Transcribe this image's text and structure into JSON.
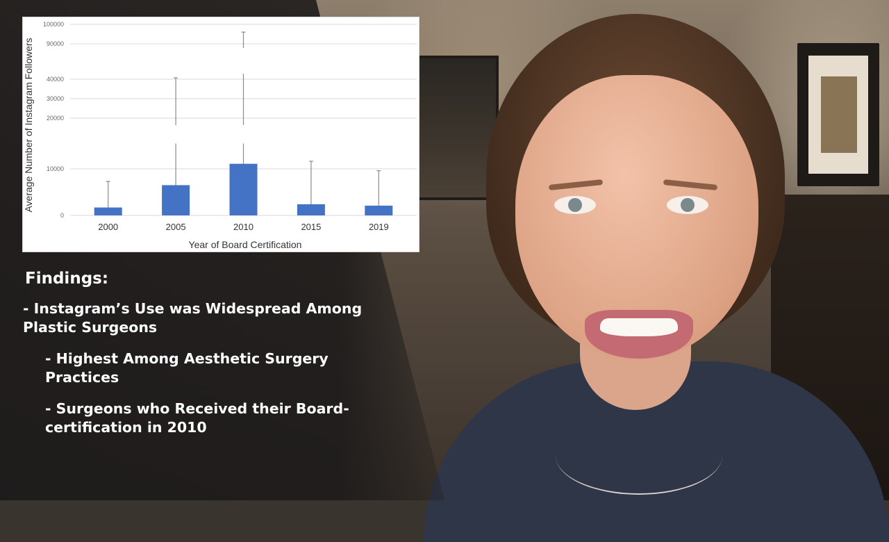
{
  "colors": {
    "bar": "#4472c4",
    "gridline": "#d9d9d9",
    "panel": "#1c1a1a",
    "findings_text": "#ffffff"
  },
  "chart_data": {
    "type": "bar",
    "title": "",
    "xlabel": "Year of Board Certification",
    "ylabel": "Average Number of Instagram Followers",
    "axis_break": "broken y-axis",
    "y_tick_labels": [
      "0",
      "10000",
      "20000",
      "30000",
      "40000",
      "90000",
      "100000"
    ],
    "categories": [
      "2000",
      "2005",
      "2010",
      "2015",
      "2019"
    ],
    "series": [
      {
        "values": [
          1700,
          6500,
          11000,
          2400,
          2100
        ],
        "error_upper": [
          7300,
          42000,
          96000,
          11500,
          9600
        ],
        "error_lower": [
          0,
          0,
          0,
          0,
          0
        ]
      }
    ],
    "grid": true,
    "legend": "none"
  },
  "findings": {
    "title": "Findings:",
    "items": [
      "- Instagram’s Use was Widespread Among Plastic Surgeons",
      "- Highest Among Aesthetic Surgery Practices",
      "- Surgeons who Received their Board-certification in 2010"
    ]
  }
}
